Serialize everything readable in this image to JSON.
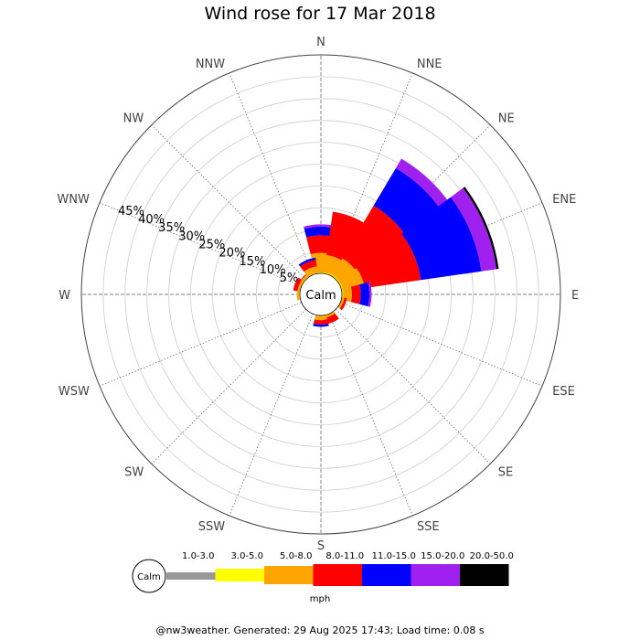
{
  "title": "Wind rose for 17 Mar 2018",
  "footer": "@nw3weather. Generated: 29 Aug 2025 17:43; Load time: 0.08 s",
  "chart_data": {
    "type": "windrose",
    "title": "Wind rose for 17 Mar 2018",
    "directions": [
      "N",
      "NNE",
      "NE",
      "ENE",
      "E",
      "ESE",
      "SE",
      "SSE",
      "S",
      "SSW",
      "SW",
      "WSW",
      "W",
      "WNW",
      "NW",
      "NNW"
    ],
    "radial_ticks": [
      "5%",
      "10%",
      "15%",
      "20%",
      "25%",
      "30%",
      "35%",
      "40%",
      "45%"
    ],
    "radial_max": 50,
    "calm_label": "Calm",
    "unit": "mph",
    "speed_bins": [
      {
        "label": "1.0-3.0",
        "color": "#999999"
      },
      {
        "label": "3.0-5.0",
        "color": "#ffff00"
      },
      {
        "label": "5.0-8.0",
        "color": "#ffa500"
      },
      {
        "label": "8.0-11.0",
        "color": "#ff0000"
      },
      {
        "label": "11.0-15.0",
        "color": "#0000ff"
      },
      {
        "label": "15.0-20.0",
        "color": "#a020f0"
      },
      {
        "label": "20.0-50.0",
        "color": "#000000"
      }
    ],
    "frequencies": {
      "N": [
        0,
        0.2,
        4.5,
        4.0,
        2.0,
        0.5,
        0
      ],
      "NNE": [
        0,
        0.3,
        4.0,
        10.0,
        0,
        0,
        0
      ],
      "NE": [
        0,
        0.3,
        4.5,
        14.0,
        10.0,
        2.5,
        0
      ],
      "ENE": [
        0,
        0.3,
        5.0,
        13.0,
        14.0,
        3.5,
        0.5
      ],
      "E": [
        0,
        0.3,
        2.0,
        2.0,
        2.0,
        0.5,
        0
      ],
      "ESE": [
        0,
        0.1,
        0.5,
        0.6,
        0,
        0,
        0
      ],
      "SE": [
        0,
        0,
        0,
        0,
        0,
        0,
        0
      ],
      "SSE": [
        0,
        0.1,
        0.5,
        1.5,
        0,
        0,
        0
      ],
      "S": [
        0,
        0.1,
        1.0,
        1.0,
        0.5,
        0,
        0
      ],
      "SSW": [
        0,
        0,
        0,
        0,
        0,
        0,
        0
      ],
      "SW": [
        0,
        0,
        0,
        0,
        0,
        0,
        0
      ],
      "WSW": [
        0,
        0,
        0,
        0,
        0,
        0,
        0
      ],
      "W": [
        0,
        0.2,
        0.5,
        0,
        0,
        0,
        0
      ],
      "WNW": [
        0,
        0.1,
        0.5,
        1.0,
        0,
        0,
        0
      ],
      "NW": [
        0,
        0.2,
        0.5,
        0.2,
        0,
        0,
        0
      ],
      "NNW": [
        0,
        0.2,
        1.5,
        1.5,
        0.5,
        0,
        0
      ]
    },
    "grid": true
  }
}
